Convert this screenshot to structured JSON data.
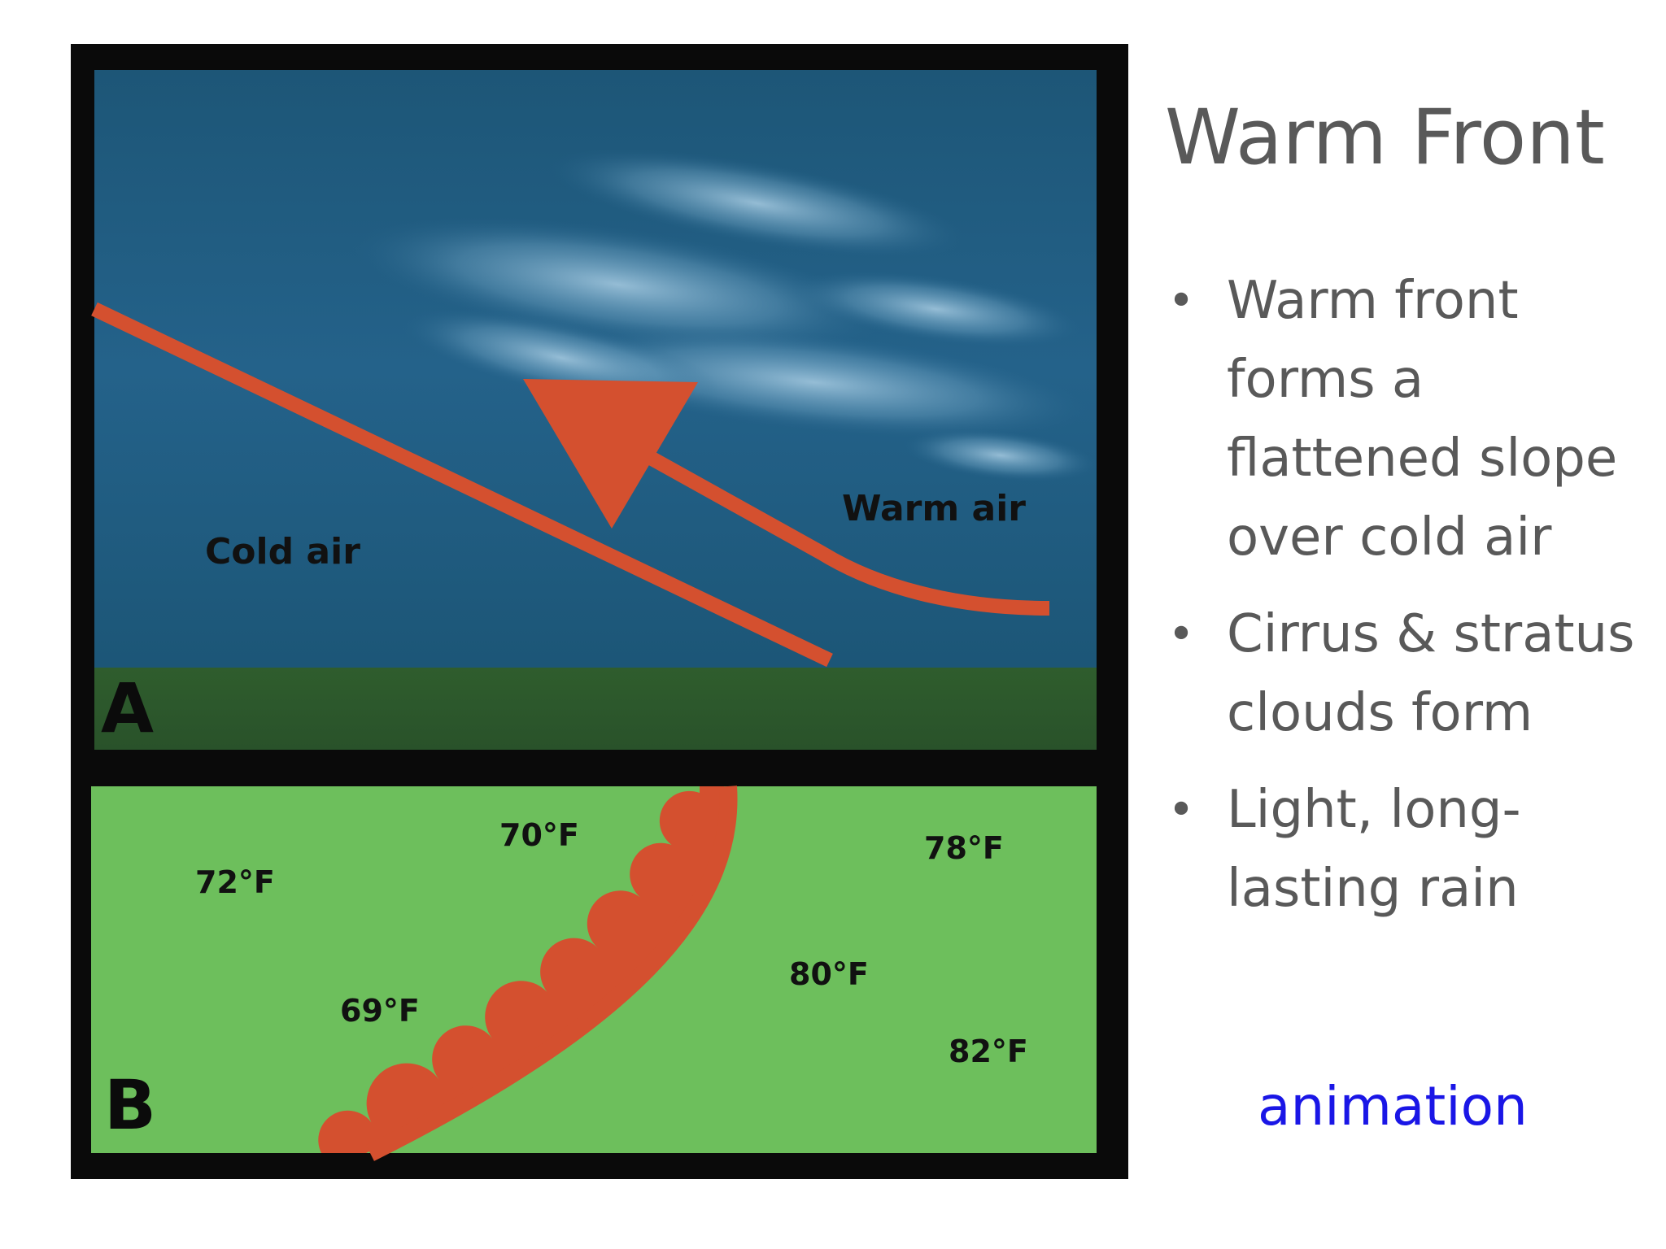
{
  "slide": {
    "title": "Warm Front",
    "bullets": [
      "Warm front forms a flattened slope over cold air",
      "Cirrus & stratus clouds form",
      "Light, long-lasting rain"
    ],
    "bullet_symbol": "•",
    "link_text": "animation"
  },
  "diagram": {
    "panel_a": {
      "letter": "A",
      "cold_label": "Cold air",
      "warm_label": "Warm air"
    },
    "panel_b": {
      "letter": "B",
      "temperatures": [
        "72°F",
        "70°F",
        "69°F",
        "78°F",
        "80°F",
        "82°F"
      ]
    }
  },
  "colors": {
    "frame": "#0a0a0a",
    "sky": "#1e5a7c",
    "ground": "#2e5b2c",
    "map": "#6dbf5c",
    "front": "#d4502f",
    "title_text": "#595959",
    "link": "#1a16e6"
  }
}
